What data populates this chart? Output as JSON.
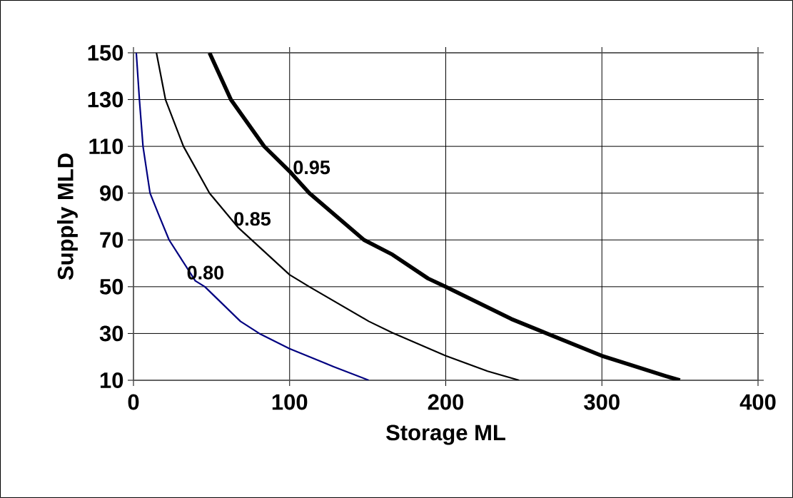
{
  "chart_data": {
    "type": "line",
    "xlabel": "Storage ML",
    "ylabel": "Supply MLD",
    "xlim": [
      0,
      400
    ],
    "ylim": [
      10,
      150
    ],
    "xticks": [
      0,
      100,
      200,
      300,
      400
    ],
    "yticks": [
      10,
      30,
      50,
      70,
      90,
      110,
      130,
      150
    ],
    "grid": true,
    "marker": "none",
    "line_style": "solid",
    "series": [
      {
        "color": "#000080",
        "x": [
          1.8,
          3.8,
          6.1,
          10.6,
          16,
          22.8,
          39.6,
          45.7,
          68.5,
          80.6,
          100,
          127.9,
          150.7
        ],
        "values": [
          150,
          130,
          110,
          90,
          81,
          70,
          52.5,
          50,
          35.2,
          30,
          23.5,
          15.9,
          10
        ]
      },
      {
        "color": "#000000",
        "x": [
          14.7,
          20.5,
          32,
          48.7,
          66.9,
          100,
          112.6,
          150.7,
          165.9,
          199.8,
          226.8,
          247
        ],
        "values": [
          150,
          130,
          110,
          90,
          75.4,
          55.1,
          50,
          35.2,
          30.3,
          20.5,
          13.9,
          10
        ]
      },
      {
        "color": "#000000",
        "x": [
          48.7,
          62.4,
          83.7,
          100,
          112.6,
          147.6,
          165.9,
          188.7,
          199.8,
          242,
          299.8,
          340.9,
          350
        ],
        "values": [
          150,
          130,
          110,
          99.3,
          90,
          70,
          63.7,
          53.5,
          50,
          36.2,
          20.5,
          11.8,
          10
        ]
      }
    ],
    "annotations": [
      {
        "text": "0.80",
        "x": 34,
        "y": 56
      },
      {
        "text": "0.85",
        "x": 64,
        "y": 79
      },
      {
        "text": "0.95",
        "x": 102,
        "y": 101
      }
    ]
  }
}
